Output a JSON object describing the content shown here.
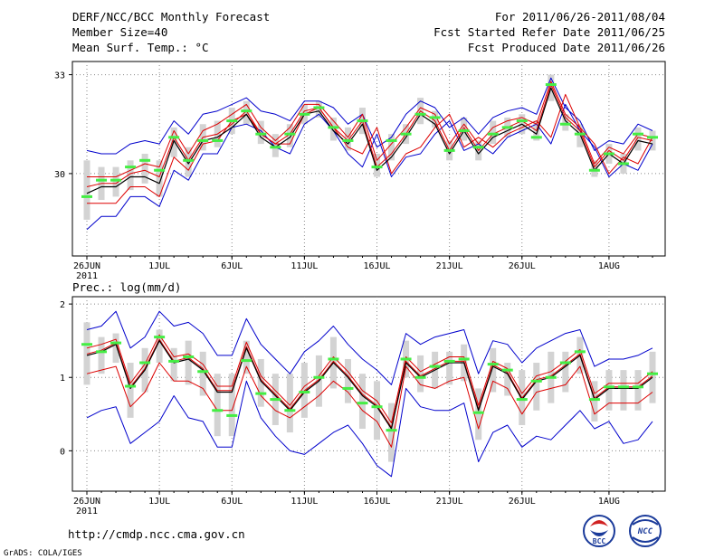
{
  "header": {
    "title": "DERF/NCC/BCC Monthly Forecast",
    "member_size": "Member Size=40",
    "variable_temp": "Mean Surf. Temp.: °C",
    "period": "For 2011/06/26-2011/08/04",
    "started": "Fcst Started Refer Date 2011/06/25",
    "produced": "Fcst Produced Date 2011/06/26"
  },
  "footer": {
    "url": "http://cmdp.ncc.cma.gov.cn",
    "credit": "GrADS: COLA/IGES",
    "logo_bcc": "BCC",
    "logo_ncc": "NCC"
  },
  "colors": {
    "box": "#d3d3d3",
    "observed": "#44ee44",
    "mean": "#000000",
    "median": "#000000",
    "spread": "#dd0000",
    "extreme": "#0000cc",
    "grid": "#888888"
  },
  "chart_data": [
    {
      "type": "line",
      "title": "Mean Surf. Temp.: °C",
      "x_tick_labels": [
        "26JUN",
        "1JUL",
        "6JUL",
        "11JUL",
        "16JUL",
        "21JUL",
        "26JUL",
        "1AUG"
      ],
      "x_tick_days": [
        1,
        6,
        11,
        16,
        21,
        26,
        31,
        37
      ],
      "x_year_label": "2011",
      "ylim": [
        27.5,
        33.4
      ],
      "y_ticks": [
        30,
        33
      ],
      "y_tick_labels": [
        "30",
        "33"
      ],
      "days": 40,
      "series": [
        {
          "name": "max",
          "values": [
            28.3,
            28.7,
            28.7,
            29.3,
            29.3,
            29.0,
            30.1,
            29.8,
            30.6,
            30.6,
            31.4,
            31.5,
            31.3,
            30.8,
            30.6,
            31.5,
            31.8,
            31.3,
            30.6,
            30.2,
            31.2,
            29.9,
            30.5,
            30.6,
            31.2,
            31.6,
            30.7,
            30.9,
            30.6,
            31.1,
            31.3,
            31.5,
            30.9,
            32.1,
            31.3,
            30.8,
            29.9,
            30.3,
            30.1,
            30.9
          ]
        },
        {
          "name": "p_high",
          "values": [
            29.1,
            29.1,
            29.1,
            29.6,
            29.6,
            29.3,
            30.5,
            30.1,
            30.9,
            31.0,
            31.6,
            31.8,
            31.2,
            30.9,
            30.9,
            31.8,
            32.0,
            31.4,
            30.8,
            30.6,
            31.4,
            30.0,
            30.6,
            30.8,
            31.4,
            31.8,
            30.8,
            31.1,
            30.8,
            31.2,
            31.4,
            31.6,
            31.1,
            32.4,
            31.4,
            30.9,
            30.0,
            30.5,
            30.3,
            31.1
          ]
        },
        {
          "name": "mean",
          "values": [
            29.4,
            29.6,
            29.6,
            29.9,
            29.9,
            29.7,
            31.0,
            30.3,
            31.0,
            31.1,
            31.4,
            31.8,
            31.1,
            30.8,
            31.1,
            31.8,
            31.9,
            31.3,
            30.9,
            31.5,
            30.1,
            30.5,
            31.1,
            31.8,
            31.5,
            30.6,
            31.3,
            30.6,
            31.1,
            31.3,
            31.5,
            31.2,
            32.6,
            31.6,
            31.2,
            30.1,
            30.6,
            30.3,
            31.0,
            30.9
          ]
        },
        {
          "name": "median",
          "values": [
            29.6,
            29.7,
            29.7,
            30.0,
            30.1,
            29.9,
            31.1,
            30.4,
            31.1,
            31.2,
            31.5,
            31.9,
            31.2,
            30.9,
            31.2,
            31.9,
            32.0,
            31.4,
            31.0,
            31.6,
            30.2,
            30.6,
            31.2,
            31.9,
            31.6,
            30.7,
            31.4,
            30.7,
            31.2,
            31.4,
            31.6,
            31.3,
            32.7,
            31.7,
            31.3,
            30.2,
            30.7,
            30.4,
            31.1,
            31.0
          ]
        },
        {
          "name": "p_low_upper",
          "values": [
            29.9,
            29.9,
            29.9,
            30.1,
            30.3,
            30.2,
            31.3,
            30.6,
            31.3,
            31.5,
            31.8,
            32.1,
            31.4,
            31.0,
            31.4,
            32.1,
            32.1,
            31.6,
            31.1,
            31.8,
            30.4,
            30.9,
            31.4,
            32.0,
            31.8,
            30.9,
            31.5,
            30.9,
            31.4,
            31.6,
            31.7,
            31.5,
            32.8,
            31.8,
            31.4,
            30.3,
            30.8,
            30.6,
            31.2,
            31.1
          ]
        },
        {
          "name": "min",
          "values": [
            30.7,
            30.6,
            30.6,
            30.9,
            31.0,
            30.9,
            31.6,
            31.2,
            31.8,
            31.9,
            32.1,
            32.3,
            31.9,
            31.8,
            31.6,
            32.2,
            32.2,
            32.0,
            31.5,
            31.8,
            30.8,
            31.1,
            31.8,
            32.2,
            32.0,
            31.4,
            31.7,
            31.2,
            31.7,
            31.9,
            32.0,
            31.8,
            32.9,
            32.0,
            31.6,
            30.7,
            31.0,
            30.9,
            31.5,
            31.3
          ]
        },
        {
          "name": "observed",
          "values": [
            29.3,
            29.8,
            29.8,
            30.2,
            30.4,
            30.1,
            31.1,
            30.4,
            31.0,
            31.0,
            31.6,
            31.9,
            31.2,
            30.8,
            31.2,
            31.8,
            32.0,
            31.4,
            31.0,
            31.6,
            30.2,
            31.0,
            31.2,
            31.8,
            31.7,
            30.7,
            31.3,
            30.8,
            31.2,
            31.4,
            31.6,
            31.1,
            32.7,
            31.5,
            31.2,
            30.1,
            30.6,
            30.3,
            31.2,
            31.1
          ]
        },
        {
          "name": "box_high",
          "values": [
            30.4,
            30.2,
            30.2,
            30.4,
            30.6,
            30.4,
            31.4,
            30.8,
            31.5,
            31.6,
            32.0,
            32.2,
            31.6,
            31.2,
            31.5,
            32.1,
            32.2,
            31.7,
            31.4,
            32.0,
            30.6,
            31.2,
            31.5,
            32.3,
            31.9,
            31.0,
            31.7,
            31.0,
            31.6,
            31.7,
            31.8,
            31.6,
            33.0,
            31.8,
            31.5,
            30.4,
            30.9,
            30.6,
            31.4,
            31.3
          ]
        },
        {
          "name": "box_low",
          "values": [
            28.6,
            29.2,
            29.3,
            29.5,
            29.7,
            29.3,
            30.5,
            29.9,
            30.7,
            30.8,
            31.2,
            31.5,
            30.9,
            30.5,
            30.8,
            31.5,
            31.7,
            31.0,
            30.7,
            31.2,
            29.9,
            30.4,
            30.9,
            31.5,
            31.4,
            30.4,
            31.0,
            30.4,
            30.9,
            31.1,
            31.2,
            31.0,
            32.2,
            31.3,
            30.8,
            29.9,
            30.3,
            30.0,
            30.7,
            30.7
          ]
        }
      ]
    },
    {
      "type": "line",
      "title": "Prec.: log(mm/d)",
      "x_tick_labels": [
        "26JUN",
        "1JUL",
        "6JUL",
        "11JUL",
        "16JUL",
        "21JUL",
        "26JUL",
        "1AUG"
      ],
      "x_tick_days": [
        1,
        6,
        11,
        16,
        21,
        26,
        31,
        37
      ],
      "x_year_label": "2011",
      "ylim": [
        -0.55,
        2.1
      ],
      "y_ticks": [
        0,
        1,
        2
      ],
      "y_tick_labels": [
        "0",
        "1",
        "2"
      ],
      "days": 40,
      "series": [
        {
          "name": "max",
          "values": [
            0.45,
            0.55,
            0.6,
            0.1,
            0.25,
            0.4,
            0.75,
            0.45,
            0.4,
            0.05,
            0.05,
            0.95,
            0.45,
            0.2,
            0.0,
            -0.05,
            0.1,
            0.25,
            0.35,
            0.1,
            -0.2,
            -0.35,
            0.85,
            0.6,
            0.55,
            0.55,
            0.65,
            -0.15,
            0.25,
            0.35,
            0.05,
            0.2,
            0.15,
            0.35,
            0.55,
            0.3,
            0.4,
            0.1,
            0.15,
            0.4
          ]
        },
        {
          "name": "p_high",
          "values": [
            1.05,
            1.1,
            1.15,
            0.6,
            0.8,
            1.2,
            0.95,
            0.95,
            0.85,
            0.55,
            0.55,
            1.15,
            0.75,
            0.55,
            0.45,
            0.6,
            0.75,
            0.95,
            0.8,
            0.55,
            0.4,
            0.05,
            1.15,
            0.9,
            0.85,
            0.95,
            1.0,
            0.3,
            0.95,
            0.85,
            0.5,
            0.8,
            0.85,
            0.9,
            1.15,
            0.5,
            0.65,
            0.65,
            0.65,
            0.8
          ]
        },
        {
          "name": "mean",
          "values": [
            1.3,
            1.35,
            1.45,
            0.85,
            1.1,
            1.5,
            1.2,
            1.25,
            1.1,
            0.8,
            0.8,
            1.4,
            0.95,
            0.75,
            0.55,
            0.8,
            0.95,
            1.2,
            1.0,
            0.75,
            0.6,
            0.3,
            1.2,
            1.0,
            1.1,
            1.2,
            1.2,
            0.55,
            1.15,
            1.05,
            0.7,
            0.95,
            1.0,
            1.15,
            1.3,
            0.7,
            0.85,
            0.85,
            0.85,
            1.0
          ]
        },
        {
          "name": "median",
          "values": [
            1.32,
            1.37,
            1.47,
            0.87,
            1.12,
            1.52,
            1.22,
            1.27,
            1.12,
            0.82,
            0.82,
            1.42,
            0.97,
            0.77,
            0.57,
            0.82,
            0.97,
            1.22,
            1.02,
            0.77,
            0.62,
            0.32,
            1.22,
            1.02,
            1.12,
            1.22,
            1.22,
            0.57,
            1.17,
            1.07,
            0.72,
            0.97,
            1.02,
            1.17,
            1.32,
            0.72,
            0.87,
            0.87,
            0.87,
            1.02
          ]
        },
        {
          "name": "p_low_upper",
          "values": [
            1.4,
            1.45,
            1.52,
            0.92,
            1.18,
            1.58,
            1.28,
            1.32,
            1.18,
            0.88,
            0.88,
            1.48,
            1.02,
            0.82,
            0.62,
            0.88,
            1.02,
            1.28,
            1.08,
            0.82,
            0.68,
            0.38,
            1.28,
            1.08,
            1.18,
            1.28,
            1.28,
            0.62,
            1.22,
            1.12,
            0.78,
            1.02,
            1.08,
            1.22,
            1.38,
            0.78,
            0.92,
            0.92,
            0.92,
            1.08
          ]
        },
        {
          "name": "min",
          "values": [
            1.65,
            1.7,
            1.9,
            1.4,
            1.55,
            1.9,
            1.7,
            1.75,
            1.6,
            1.3,
            1.3,
            1.8,
            1.45,
            1.25,
            1.05,
            1.35,
            1.5,
            1.7,
            1.45,
            1.25,
            1.1,
            0.9,
            1.6,
            1.45,
            1.55,
            1.6,
            1.65,
            1.05,
            1.5,
            1.45,
            1.2,
            1.4,
            1.5,
            1.6,
            1.65,
            1.15,
            1.25,
            1.25,
            1.3,
            1.4
          ]
        },
        {
          "name": "observed",
          "values": [
            1.45,
            1.35,
            1.47,
            0.88,
            1.2,
            1.55,
            1.22,
            1.28,
            1.08,
            0.55,
            0.48,
            1.23,
            0.78,
            0.7,
            0.55,
            0.8,
            1.0,
            1.25,
            0.85,
            0.65,
            0.6,
            0.28,
            1.25,
            1.0,
            1.15,
            1.22,
            1.25,
            0.52,
            1.18,
            1.1,
            0.7,
            0.95,
            1.0,
            1.2,
            1.35,
            0.7,
            0.87,
            0.87,
            0.87,
            1.05
          ]
        },
        {
          "name": "box_high",
          "values": [
            1.75,
            1.55,
            1.6,
            1.2,
            1.4,
            1.65,
            1.4,
            1.5,
            1.35,
            1.05,
            1.05,
            1.5,
            1.25,
            1.05,
            1.05,
            1.2,
            1.3,
            1.55,
            1.25,
            1.05,
            0.95,
            0.65,
            1.5,
            1.3,
            1.35,
            1.35,
            1.45,
            0.85,
            1.4,
            1.2,
            1.1,
            1.2,
            1.35,
            1.35,
            1.55,
            0.95,
            1.1,
            1.1,
            1.1,
            1.35
          ]
        },
        {
          "name": "box_low",
          "values": [
            0.9,
            1.05,
            1.2,
            0.45,
            0.8,
            1.2,
            0.95,
            0.9,
            0.75,
            0.2,
            0.2,
            1.05,
            0.6,
            0.35,
            0.25,
            0.45,
            0.6,
            0.85,
            0.65,
            0.3,
            0.15,
            -0.15,
            1.0,
            0.8,
            0.85,
            0.9,
            0.95,
            0.15,
            0.8,
            0.75,
            0.35,
            0.55,
            0.65,
            0.8,
            1.05,
            0.4,
            0.55,
            0.55,
            0.55,
            0.65
          ]
        }
      ]
    }
  ]
}
